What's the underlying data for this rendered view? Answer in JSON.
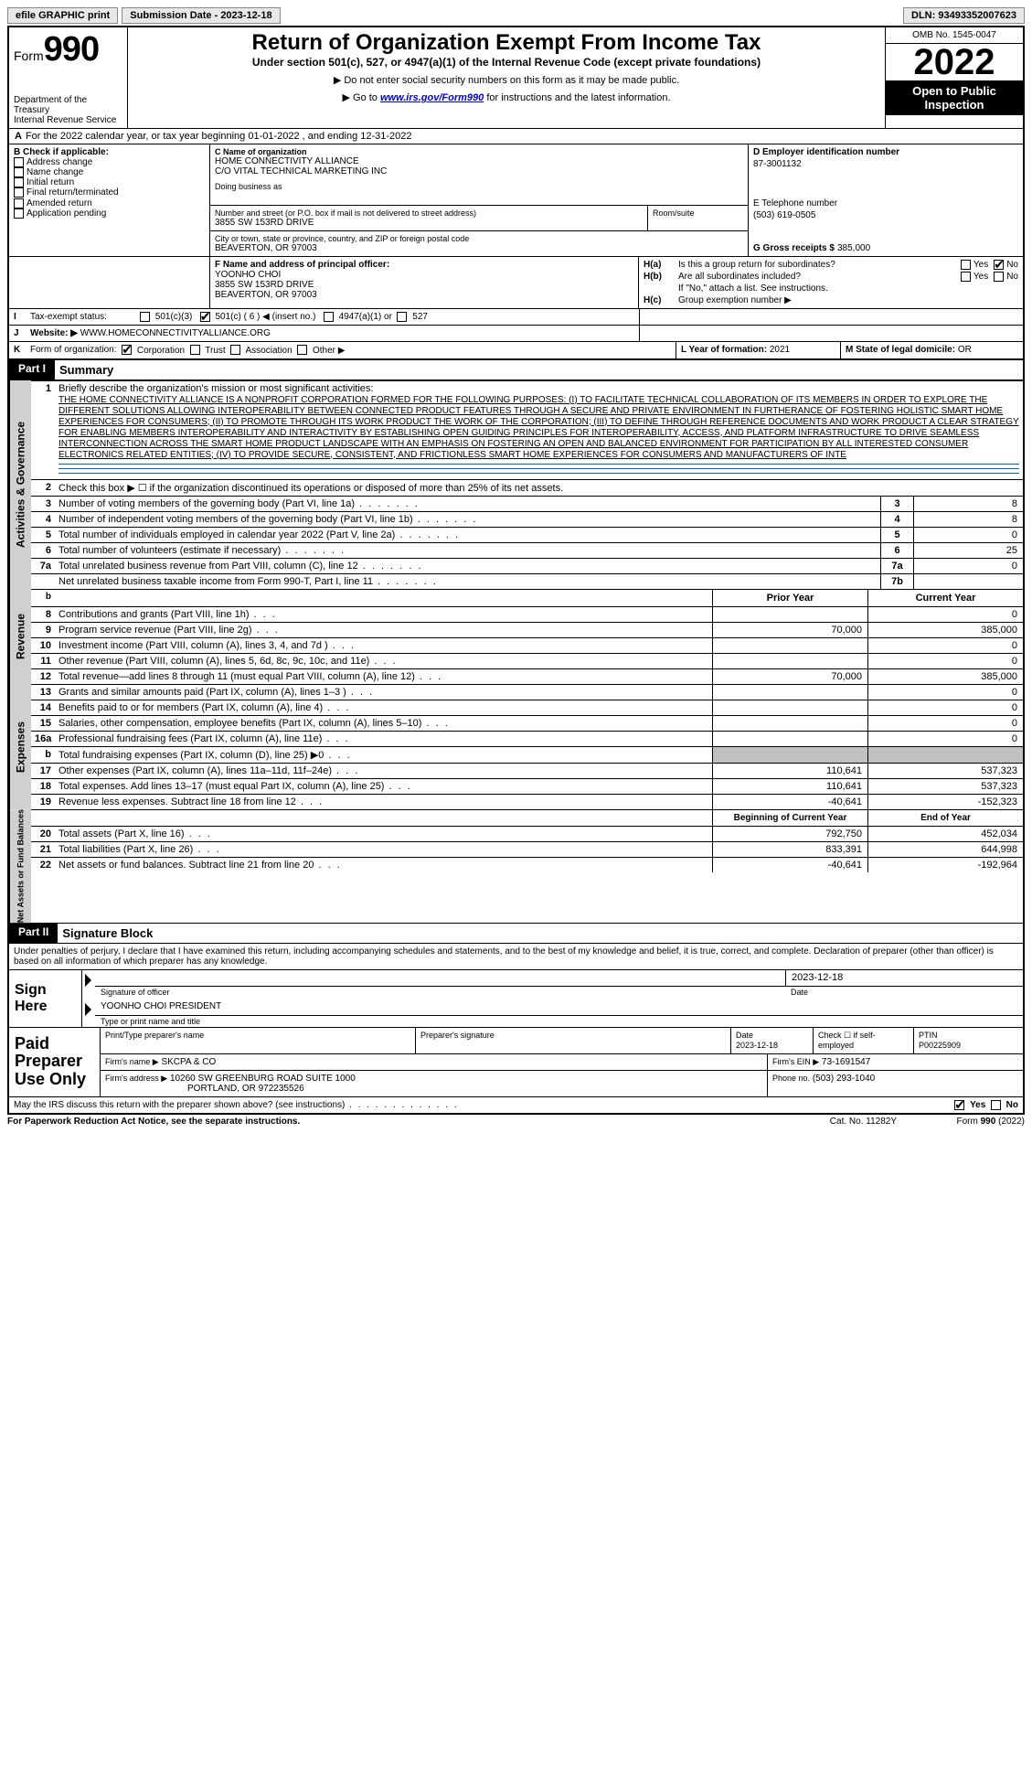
{
  "header_bar": {
    "efile": "efile GRAPHIC print",
    "sub_label": "Submission Date - 2023-12-18",
    "dln": "DLN: 93493352007623"
  },
  "top": {
    "form_label": "Form",
    "form_num": "990",
    "dept": "Department of the Treasury",
    "irs": "Internal Revenue Service",
    "title": "Return of Organization Exempt From Income Tax",
    "sub1": "Under section 501(c), 527, or 4947(a)(1) of the Internal Revenue Code (except private foundations)",
    "sub2": "▶ Do not enter social security numbers on this form as it may be made public.",
    "sub3_pre": "▶ Go to ",
    "sub3_link": "www.irs.gov/Form990",
    "sub3_post": " for instructions and the latest information.",
    "omb": "OMB No. 1545-0047",
    "year": "2022",
    "inspection": "Open to Public Inspection"
  },
  "A": {
    "text": "For the 2022 calendar year, or tax year beginning 01-01-2022   , and ending 12-31-2022",
    "prefix": "A"
  },
  "B": {
    "label": "B Check if applicable:",
    "items": [
      "Address change",
      "Name change",
      "Initial return",
      "Final return/terminated",
      "Amended return",
      "Application pending"
    ]
  },
  "C": {
    "label": "C Name of organization",
    "name": "HOME CONNECTIVITY ALLIANCE",
    "co": "C/O VITAL TECHNICAL MARKETING INC",
    "dba_label": "Doing business as",
    "addr_label": "Number and street (or P.O. box if mail is not delivered to street address)",
    "room_label": "Room/suite",
    "addr": "3855 SW 153RD DRIVE",
    "city_label": "City or town, state or province, country, and ZIP or foreign postal code",
    "city": "BEAVERTON, OR  97003"
  },
  "D": {
    "label": "D Employer identification number",
    "val": "87-3001132"
  },
  "E": {
    "label": "E Telephone number",
    "val": "(503) 619-0505"
  },
  "G": {
    "label": "G Gross receipts $",
    "val": "385,000"
  },
  "F": {
    "label": "F  Name and address of principal officer:",
    "name": "YOONHO CHOI",
    "addr1": "3855 SW 153RD DRIVE",
    "addr2": "BEAVERTON, OR  97003"
  },
  "H": {
    "a": "Is this a group return for subordinates?",
    "b": "Are all subordinates included?",
    "note": "If \"No,\" attach a list. See instructions.",
    "c": "Group exemption number ▶",
    "ha": "H(a)",
    "hb": "H(b)",
    "hc": "H(c)",
    "yes": "Yes",
    "no": "No"
  },
  "I": {
    "label": "Tax-exempt status:",
    "prefix": "I",
    "opt1": "501(c)(3)",
    "opt2": "501(c) ( 6 ) ◀ (insert no.)",
    "opt3": "4947(a)(1) or",
    "opt4": "527"
  },
  "J": {
    "label": "Website: ▶",
    "prefix": "J",
    "val": "WWW.HOMECONNECTIVITYALLIANCE.ORG"
  },
  "K": {
    "label": "Form of organization:",
    "prefix": "K",
    "opts": [
      "Corporation",
      "Trust",
      "Association",
      "Other ▶"
    ]
  },
  "L": {
    "label": "L Year of formation:",
    "val": "2021"
  },
  "M": {
    "label": "M State of legal domicile:",
    "val": "OR"
  },
  "part1": {
    "label": "Part I",
    "title": "Summary"
  },
  "s1": {
    "num": "1",
    "label": "Briefly describe the organization's mission or most significant activities:",
    "text": "THE HOME CONNECTIVITY ALLIANCE IS A NONPROFIT CORPORATION FORMED FOR THE FOLLOWING PURPOSES: (I) TO FACILITATE TECHNICAL COLLABORATION OF ITS MEMBERS IN ORDER TO EXPLORE THE DIFFERENT SOLUTIONS ALLOWING INTEROPERABILITY BETWEEN CONNECTED PRODUCT FEATURES THROUGH A SECURE AND PRIVATE ENVIRONMENT IN FURTHERANCE OF FOSTERING HOLISTIC SMART HOME EXPERIENCES FOR CONSUMERS; (II) TO PROMOTE THROUGH ITS WORK PRODUCT THE WORK OF THE CORPORATION; (III) TO DEFINE THROUGH REFERENCE DOCUMENTS AND WORK PRODUCT A CLEAR STRATEGY FOR ENABLING MEMBERS INTEROPERABILITY AND INTERACTIVITY BY ESTABLISHING OPEN GUIDING PRINCIPLES FOR INTEROPERABILITY, ACCESS, AND PLATFORM INFRASTRUCTURE TO DRIVE SEAMLESS INTERCONNECTION ACROSS THE SMART HOME PRODUCT LANDSCAPE WITH AN EMPHASIS ON FOSTERING AN OPEN AND BALANCED ENVIRONMENT FOR PARTICIPATION BY ALL INTERESTED CONSUMER ELECTRONICS RELATED ENTITIES; (IV) TO PROVIDE SECURE, CONSISTENT, AND FRICTIONLESS SMART HOME EXPERIENCES FOR CONSUMERS AND MANUFACTURERS OF INTE"
  },
  "s2": "Check this box ▶ ☐ if the organization discontinued its operations or disposed of more than 25% of its net assets.",
  "gov_rows": [
    {
      "n": "3",
      "t": "Number of voting members of the governing body (Part VI, line 1a)",
      "box": "3",
      "v": "8"
    },
    {
      "n": "4",
      "t": "Number of independent voting members of the governing body (Part VI, line 1b)",
      "box": "4",
      "v": "8"
    },
    {
      "n": "5",
      "t": "Total number of individuals employed in calendar year 2022 (Part V, line 2a)",
      "box": "5",
      "v": "0"
    },
    {
      "n": "6",
      "t": "Total number of volunteers (estimate if necessary)",
      "box": "6",
      "v": "25"
    },
    {
      "n": "7a",
      "t": "Total unrelated business revenue from Part VIII, column (C), line 12",
      "box": "7a",
      "v": "0"
    },
    {
      "n": "",
      "t": "Net unrelated business taxable income from Form 990-T, Part I, line 11",
      "box": "7b",
      "v": ""
    }
  ],
  "col_hdrs": {
    "prior": "Prior Year",
    "current": "Current Year",
    "boy": "Beginning of Current Year",
    "eoy": "End of Year"
  },
  "rev_rows": [
    {
      "n": "8",
      "t": "Contributions and grants (Part VIII, line 1h)",
      "p": "",
      "c": "0"
    },
    {
      "n": "9",
      "t": "Program service revenue (Part VIII, line 2g)",
      "p": "70,000",
      "c": "385,000"
    },
    {
      "n": "10",
      "t": "Investment income (Part VIII, column (A), lines 3, 4, and 7d )",
      "p": "",
      "c": "0"
    },
    {
      "n": "11",
      "t": "Other revenue (Part VIII, column (A), lines 5, 6d, 8c, 9c, 10c, and 11e)",
      "p": "",
      "c": "0"
    },
    {
      "n": "12",
      "t": "Total revenue—add lines 8 through 11 (must equal Part VIII, column (A), line 12)",
      "p": "70,000",
      "c": "385,000"
    }
  ],
  "exp_rows": [
    {
      "n": "13",
      "t": "Grants and similar amounts paid (Part IX, column (A), lines 1–3 )",
      "p": "",
      "c": "0"
    },
    {
      "n": "14",
      "t": "Benefits paid to or for members (Part IX, column (A), line 4)",
      "p": "",
      "c": "0"
    },
    {
      "n": "15",
      "t": "Salaries, other compensation, employee benefits (Part IX, column (A), lines 5–10)",
      "p": "",
      "c": "0"
    },
    {
      "n": "16a",
      "t": "Professional fundraising fees (Part IX, column (A), line 11e)",
      "p": "",
      "c": "0"
    },
    {
      "n": "b",
      "t": "Total fundraising expenses (Part IX, column (D), line 25) ▶0",
      "p": "SHADE",
      "c": "SHADE"
    },
    {
      "n": "17",
      "t": "Other expenses (Part IX, column (A), lines 11a–11d, 11f–24e)",
      "p": "110,641",
      "c": "537,323"
    },
    {
      "n": "18",
      "t": "Total expenses. Add lines 13–17 (must equal Part IX, column (A), line 25)",
      "p": "110,641",
      "c": "537,323"
    },
    {
      "n": "19",
      "t": "Revenue less expenses. Subtract line 18 from line 12",
      "p": "-40,641",
      "c": "-152,323"
    }
  ],
  "na_rows": [
    {
      "n": "20",
      "t": "Total assets (Part X, line 16)",
      "p": "792,750",
      "c": "452,034"
    },
    {
      "n": "21",
      "t": "Total liabilities (Part X, line 26)",
      "p": "833,391",
      "c": "644,998"
    },
    {
      "n": "22",
      "t": "Net assets or fund balances. Subtract line 21 from line 20",
      "p": "-40,641",
      "c": "-192,964"
    }
  ],
  "part2": {
    "label": "Part II",
    "title": "Signature Block"
  },
  "penalty": "Under penalties of perjury, I declare that I have examined this return, including accompanying schedules and statements, and to the best of my knowledge and belief, it is true, correct, and complete. Declaration of preparer (other than officer) is based on all information of which preparer has any knowledge.",
  "sign": {
    "here1": "Sign",
    "here2": "Here",
    "sig_lbl": "Signature of officer",
    "date_lbl": "Date",
    "date": "2023-12-18",
    "name": "YOONHO CHOI PRESIDENT",
    "name_lbl": "Type or print name and title"
  },
  "paid": {
    "title1": "Paid",
    "title2": "Preparer",
    "title3": "Use Only",
    "h1": "Print/Type preparer's name",
    "h2": "Preparer's signature",
    "h3": "Date",
    "h3v": "2023-12-18",
    "h4": "Check ☐ if self-employed",
    "h5": "PTIN",
    "h5v": "P00225909",
    "firm_lbl": "Firm's name   ▶",
    "firm": "SKCPA & CO",
    "ein_lbl": "Firm's EIN ▶",
    "ein": "73-1691547",
    "addr_lbl": "Firm's address ▶",
    "addr1": "10260 SW GREENBURG ROAD SUITE 1000",
    "addr2": "PORTLAND, OR  972235526",
    "phone_lbl": "Phone no.",
    "phone": "(503) 293-1040"
  },
  "footer": {
    "discuss": "May the IRS discuss this return with the preparer shown above? (see instructions)",
    "paperwork": "For Paperwork Reduction Act Notice, see the separate instructions.",
    "cat": "Cat. No. 11282Y",
    "form": "Form 990 (2022)",
    "yes": "Yes",
    "no": "No"
  },
  "vtabs": {
    "gov": "Activities & Governance",
    "rev": "Revenue",
    "exp": "Expenses",
    "na": "Net Assets or Fund Balances"
  }
}
